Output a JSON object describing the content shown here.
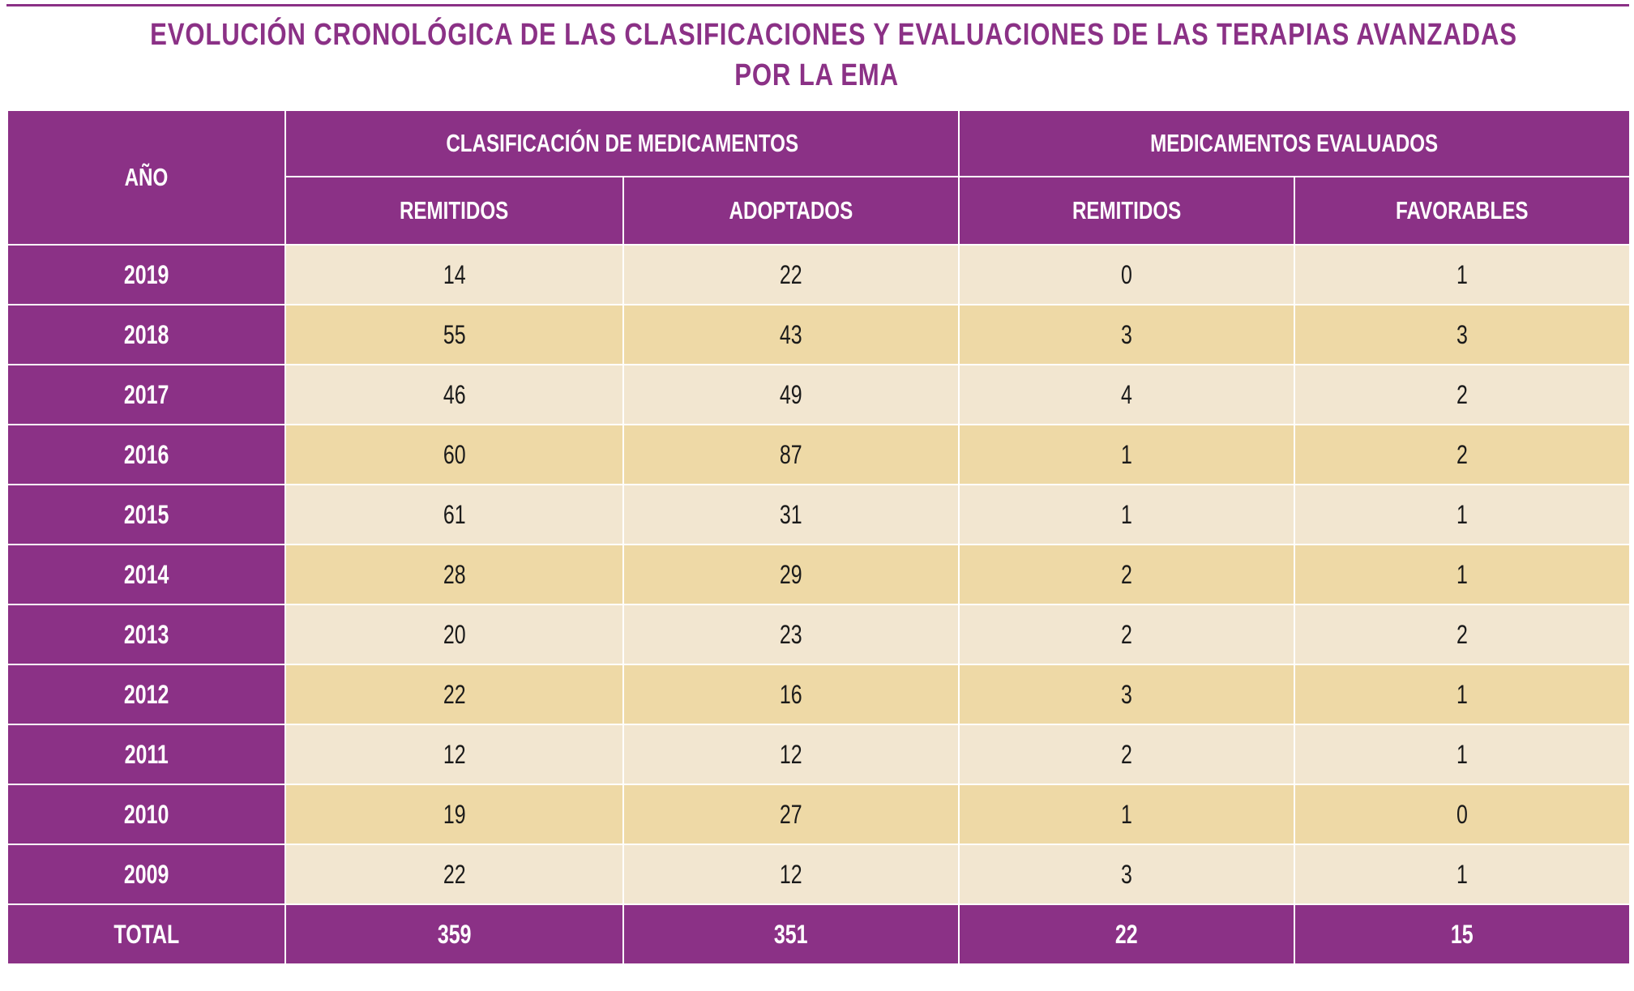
{
  "title": {
    "line1": "EVOLUCIÓN CRONOLÓGICA DE LAS CLASIFICACIONES Y EVALUACIONES DE LAS TERAPIAS AVANZADAS",
    "line2": "POR LA EMA"
  },
  "colors": {
    "header": "#8b3186",
    "row_light": "#f2e6d0",
    "row_dark": "#eed9a6"
  },
  "table": {
    "year_header": "AÑO",
    "groups": [
      "CLASIFICACIÓN DE MEDICAMENTOS",
      "MEDICAMENTOS EVALUADOS"
    ],
    "columns": [
      "REMITIDOS",
      "ADOPTADOS",
      "REMITIDOS",
      "FAVORABLES"
    ],
    "rows": [
      {
        "year": "2019",
        "values": [
          "14",
          "22",
          "0",
          "1"
        ]
      },
      {
        "year": "2018",
        "values": [
          "55",
          "43",
          "3",
          "3"
        ]
      },
      {
        "year": "2017",
        "values": [
          "46",
          "49",
          "4",
          "2"
        ]
      },
      {
        "year": "2016",
        "values": [
          "60",
          "87",
          "1",
          "2"
        ]
      },
      {
        "year": "2015",
        "values": [
          "61",
          "31",
          "1",
          "1"
        ]
      },
      {
        "year": "2014",
        "values": [
          "28",
          "29",
          "2",
          "1"
        ]
      },
      {
        "year": "2013",
        "values": [
          "20",
          "23",
          "2",
          "2"
        ]
      },
      {
        "year": "2012",
        "values": [
          "22",
          "16",
          "3",
          "1"
        ]
      },
      {
        "year": "2011",
        "values": [
          "12",
          "12",
          "2",
          "1"
        ]
      },
      {
        "year": "2010",
        "values": [
          "19",
          "27",
          "1",
          "0"
        ]
      },
      {
        "year": "2009",
        "values": [
          "22",
          "12",
          "3",
          "1"
        ]
      }
    ],
    "total": {
      "label": "TOTAL",
      "values": [
        "359",
        "351",
        "22",
        "15"
      ]
    }
  }
}
